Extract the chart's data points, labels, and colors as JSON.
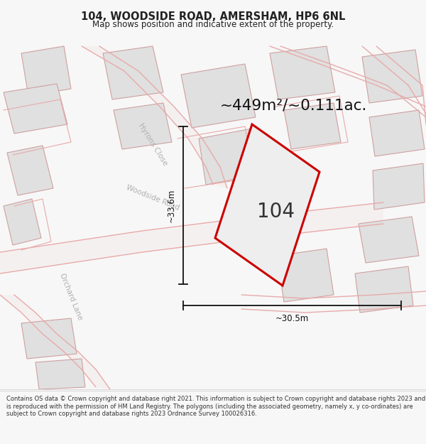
{
  "title_line1": "104, WOODSIDE ROAD, AMERSHAM, HP6 6NL",
  "title_line2": "Map shows position and indicative extent of the property.",
  "area_label": "~449m²/~0.111ac.",
  "plot_number": "104",
  "dim_vertical": "~33.6m",
  "dim_horizontal": "~30.5m",
  "footer_text": "Contains OS data © Crown copyright and database right 2021. This information is subject to Crown copyright and database rights 2023 and is reproduced with the permission of HM Land Registry. The polygons (including the associated geometry, namely x, y co-ordinates) are subject to Crown copyright and database rights 2023 Ordnance Survey 100026316.",
  "bg_color": "#f7f7f7",
  "map_bg": "#ffffff",
  "road_line_color": "#e8aaaa",
  "road_fill_color": "#f0e8e8",
  "building_fill": "#e0e0e0",
  "building_outline": "#d0a0a0",
  "plot_fill": "#eeeeee",
  "plot_outline": "#cc0000",
  "road_label_color": "#b0b0b0",
  "dim_color": "#333333",
  "title_color": "#222222",
  "footer_color": "#333333",
  "dim_line_color": "#111111"
}
